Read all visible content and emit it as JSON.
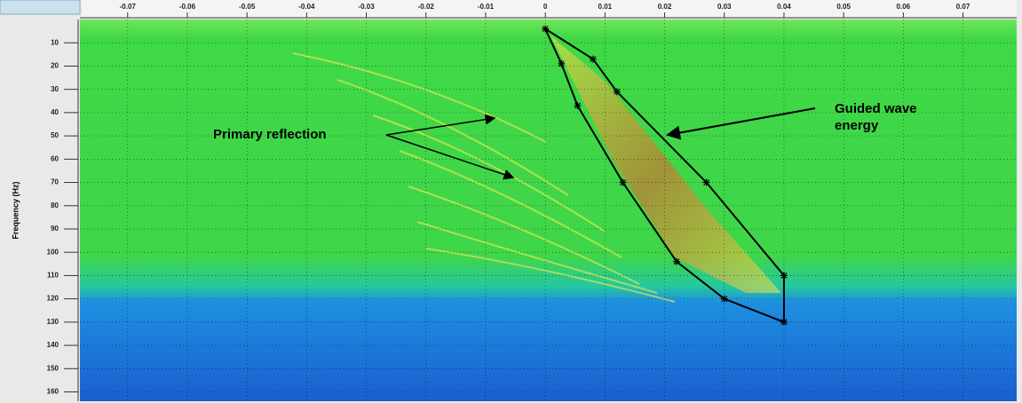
{
  "chart_data": {
    "type": "fk-spectrum",
    "y_label": "Frequency (Hz)",
    "xlim": [
      -0.078,
      0.079
    ],
    "ylim": [
      0,
      164
    ],
    "y_inverted": true,
    "xticks": [
      -0.07,
      -0.06,
      -0.05,
      -0.04,
      -0.03,
      -0.02,
      -0.01,
      0,
      0.01,
      0.02,
      0.03,
      0.04,
      0.05,
      0.06,
      0.07
    ],
    "yticks": [
      10,
      20,
      30,
      40,
      50,
      60,
      70,
      80,
      90,
      100,
      110,
      120,
      130,
      140,
      150,
      160
    ],
    "grid": true,
    "polygon": {
      "color": "#000000",
      "x": [
        0,
        0.008,
        0.012,
        0.027,
        0.04,
        0.04,
        0.03,
        0.022,
        0.013,
        0.0054,
        0.0027
      ],
      "y": [
        4,
        17,
        31,
        70,
        110,
        130,
        120,
        104,
        70,
        37,
        19
      ]
    },
    "annotations": [
      "Primary reflection",
      "Guided wave",
      "energy"
    ]
  }
}
